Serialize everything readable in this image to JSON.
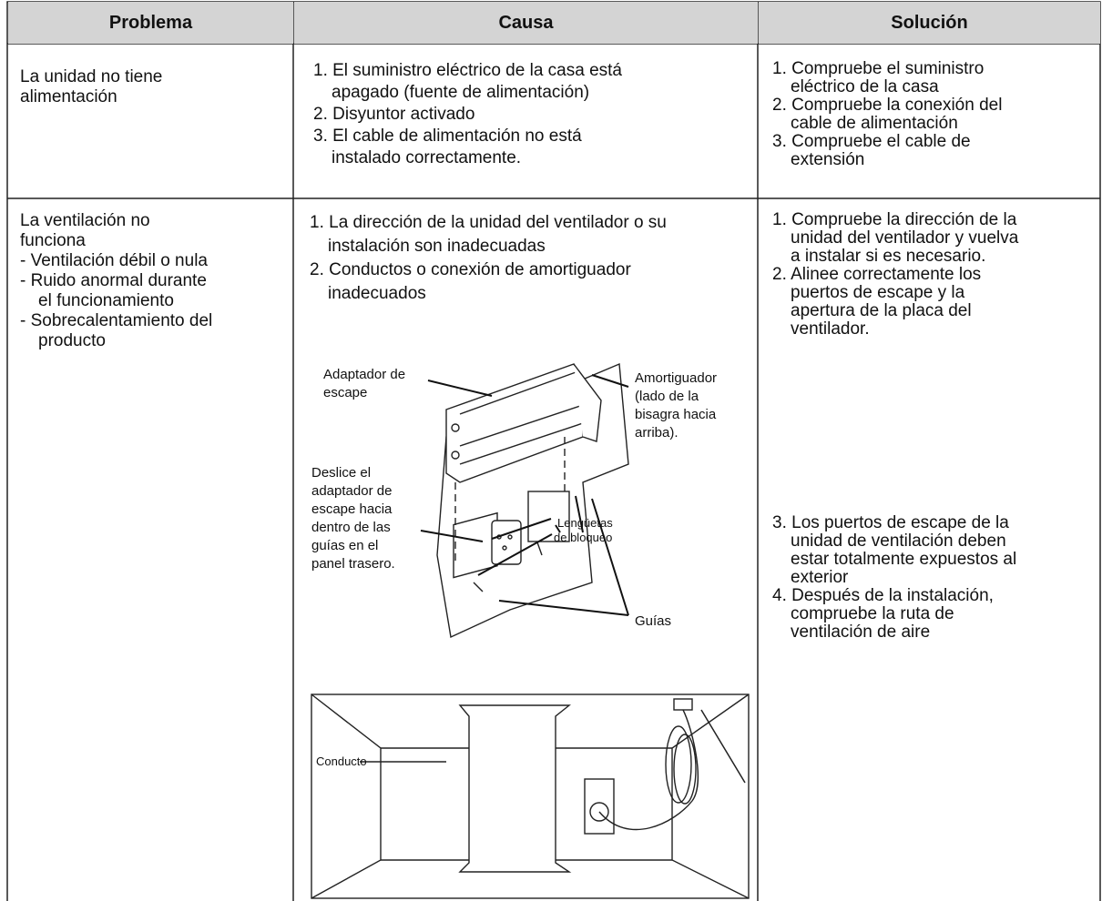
{
  "table": {
    "header": [
      "Problema",
      "Causa",
      "Solución"
    ],
    "rows": [
      {
        "problem": [
          [
            "La unidad no tiene",
            "alimentación"
          ]
        ],
        "causes": [
          [
            "1. El suministro eléctrico de la casa está",
            "apagado (fuente de alimentación)"
          ],
          [
            "2. Disyuntor activado"
          ],
          [
            "3. El cable de alimentación no está",
            "instalado correctamente."
          ]
        ],
        "solutions": [
          [
            "1. Compruebe el suministro",
            "eléctrico de la casa"
          ],
          [
            "2. Compruebe la conexión del",
            "cable de alimentación"
          ],
          [
            "3. Compruebe el cable de",
            "extensión"
          ]
        ]
      },
      {
        "problem": [
          [
            "La ventilación no",
            "funciona"
          ],
          [
            "- Ventilación débil o nula"
          ],
          [
            "- Ruido anormal durante",
            "el funcionamiento"
          ],
          [
            "- Sobrecalentamiento del",
            "producto"
          ]
        ],
        "causes": [
          [
            "1. La dirección de la unidad del ventilador o su",
            "instalación son inadecuadas"
          ],
          [
            "2. Conductos o conexión de amortiguador",
            "inadecuados"
          ]
        ],
        "solutions": [
          [
            "1. Compruebe la dirección de la",
            "unidad del ventilador y vuelva",
            "a instalar si es necesario."
          ],
          [
            "2. Alinee correctamente los",
            "puertos de escape y la",
            "apertura de la placa del",
            "ventilador."
          ],
          [
            "3. Los puertos de escape de la",
            "unidad de ventilación deben",
            "estar totalmente expuestos al",
            "exterior"
          ],
          [
            "4. Después de la instalación,",
            "compruebe la ruta de",
            "ventilación de aire"
          ]
        ]
      }
    ]
  },
  "diagram": {
    "adapter_labels": [
      [
        "Adaptador de",
        "escape"
      ],
      [
        "Amortiguador",
        "(lado de la",
        "bisagra hacia",
        "arriba)."
      ],
      [
        "Deslice el",
        "adaptador de",
        "escape hacia",
        "dentro de las",
        "guías en el",
        "panel trasero."
      ],
      [
        "Lengüetas",
        "de bloqueo"
      ],
      [
        "Guías"
      ]
    ],
    "duct_label": "Conducto"
  }
}
